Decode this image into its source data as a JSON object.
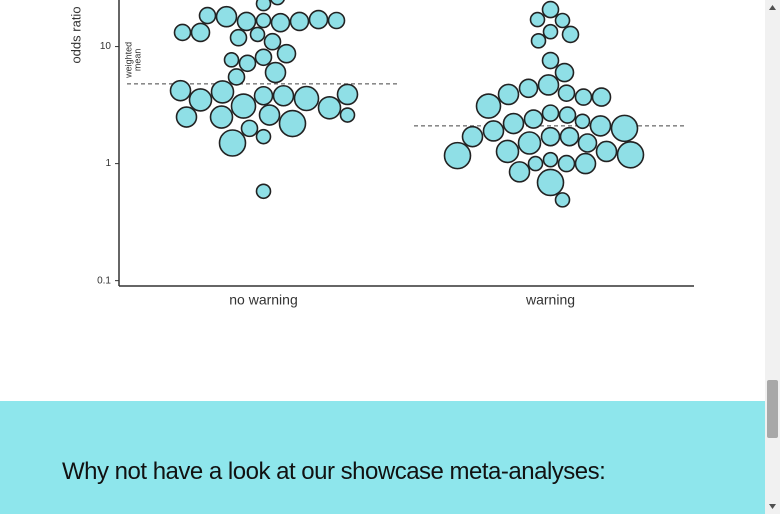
{
  "chart_data": {
    "type": "beeswarm",
    "y_label": "odds ratio",
    "categories": [
      "no warning",
      "warning"
    ],
    "log_y": true,
    "ylim": [
      0.09,
      25
    ],
    "yticks": [
      0.1,
      1,
      10
    ],
    "color": "#8fdfe6",
    "groups": [
      {
        "values": [
          23.3,
          26.2,
          16.7,
          16.0,
          12.7,
          16.4,
          16.4,
          18.0,
          17.0,
          18.4,
          16.7,
          11.0,
          11.9,
          13.2,
          13.2,
          8.1,
          8.7,
          7.2,
          7.7,
          6.0,
          5.5,
          3.8,
          3.8,
          4.1,
          3.6,
          3.5,
          3.1,
          3.0,
          2.6,
          2.5,
          2.2,
          2.5,
          1.7,
          2.0,
          1.5,
          0.58,
          3.9,
          4.2,
          2.6
        ],
        "sizes": [
          2,
          2,
          2,
          4,
          2,
          4,
          4,
          5,
          4,
          3,
          3,
          3,
          3,
          4,
          3,
          3,
          4,
          3,
          2,
          5,
          3,
          4,
          5,
          6,
          7,
          6,
          7,
          6,
          5,
          6,
          8,
          5,
          2,
          3,
          8,
          2,
          5,
          5,
          2
        ]
      },
      {
        "values": [
          20.7,
          16.7,
          17.0,
          13.4,
          12.7,
          11.2,
          7.6,
          6.0,
          4.7,
          4.4,
          4.0,
          3.7,
          3.9,
          3.7,
          3.1,
          2.7,
          2.6,
          2.4,
          2.3,
          2.2,
          2.1,
          2.0,
          1.9,
          1.7,
          1.7,
          1.7,
          1.5,
          1.5,
          1.27,
          1.27,
          1.19,
          1.17,
          1.08,
          1.0,
          1.0,
          1.0,
          0.85,
          0.69,
          0.49
        ],
        "sizes": [
          3,
          2,
          2,
          2,
          3,
          2,
          3,
          4,
          5,
          4,
          3,
          3,
          5,
          4,
          7,
          3,
          3,
          4,
          2,
          5,
          5,
          8,
          5,
          4,
          4,
          5,
          6,
          4,
          6,
          5,
          8,
          8,
          2,
          3,
          5,
          2,
          5,
          8,
          2
        ]
      }
    ],
    "weighted_mean": [
      4.8,
      2.1
    ],
    "mean_label_lines": [
      "weighted",
      "mean"
    ]
  },
  "section": {
    "heading": "Why not have a look at our showcase meta-analyses:"
  }
}
